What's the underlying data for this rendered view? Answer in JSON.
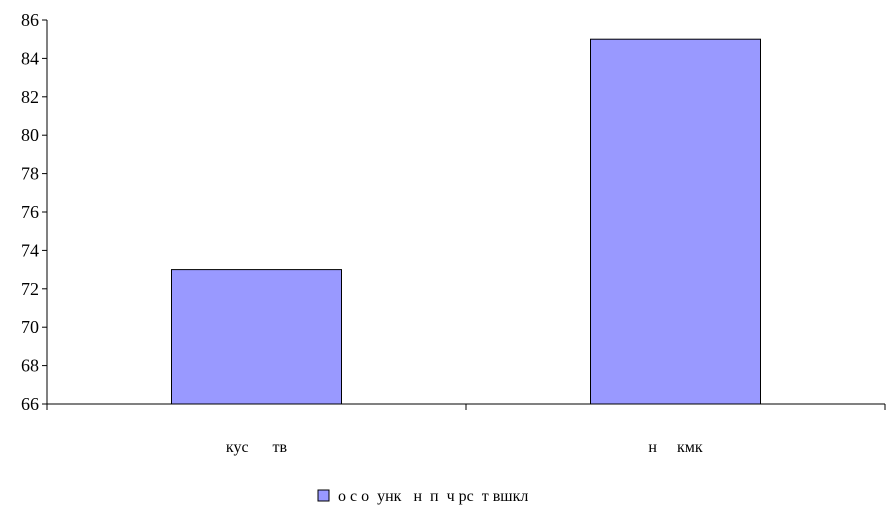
{
  "chart_data": {
    "type": "bar",
    "categories": [
      "кус тв",
      "н кмк"
    ],
    "categories_display": [
      "кус      тв",
      "н     кмк"
    ],
    "series": [
      {
        "name": "о с о  унк   н  п  ч рс  т вшкл",
        "values": [
          73,
          85
        ],
        "color": "#9999ff"
      }
    ],
    "ylim": [
      66,
      86
    ],
    "yticks": [
      66,
      68,
      70,
      72,
      74,
      76,
      78,
      80,
      82,
      84,
      86
    ],
    "grid": false,
    "legend_position": "bottom",
    "title": "",
    "xlabel": "",
    "ylabel": ""
  }
}
